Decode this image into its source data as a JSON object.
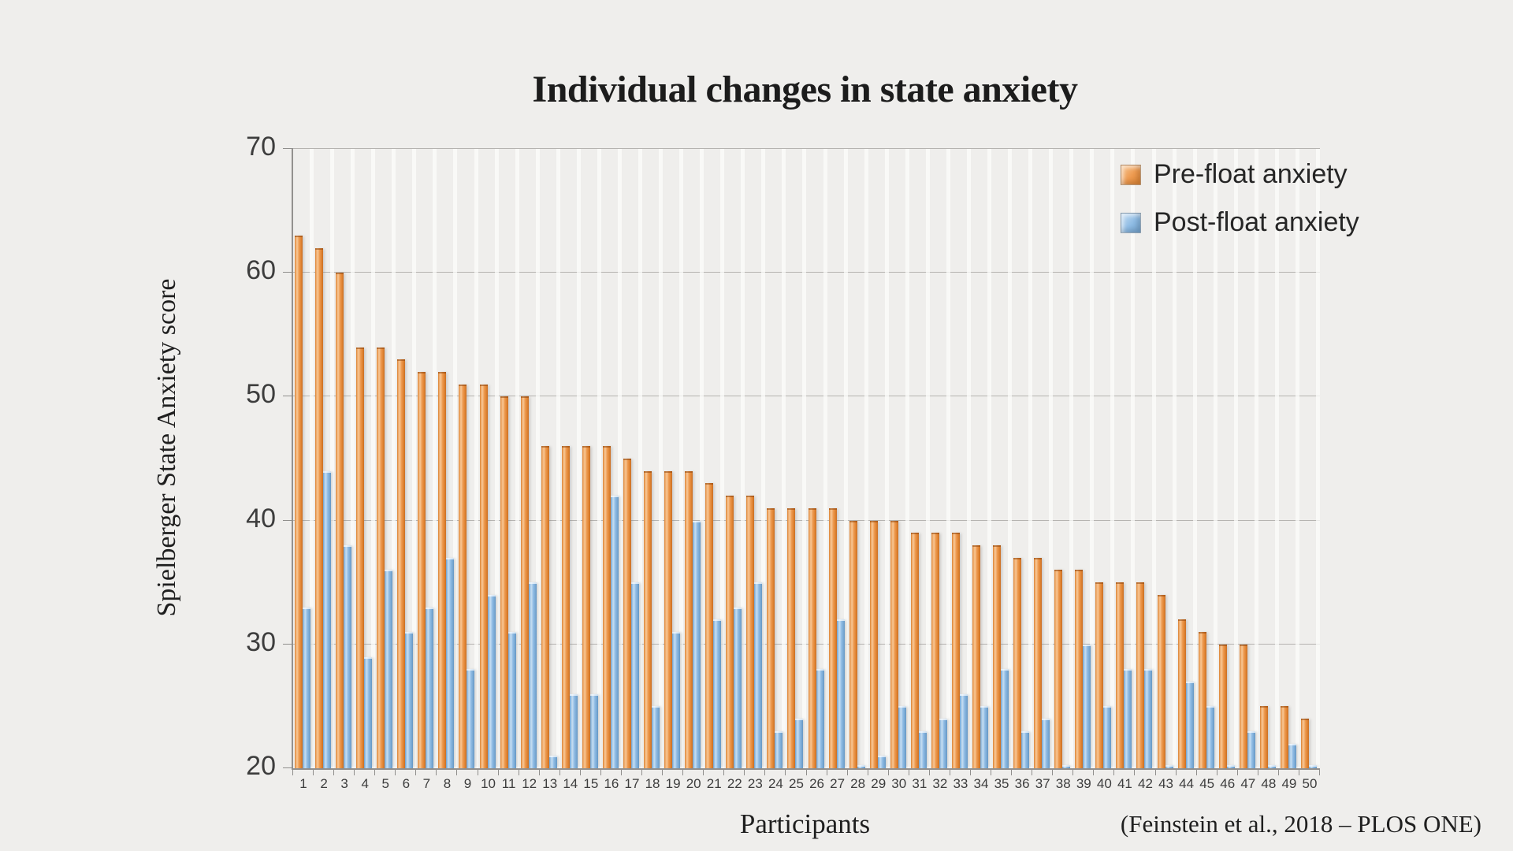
{
  "title": "Individual changes in state anxiety",
  "y_axis": {
    "title": "Spielberger State Anxiety score",
    "ticks": [
      70,
      60,
      50,
      40,
      30,
      20
    ],
    "min": 20,
    "max": 70
  },
  "x_axis": {
    "title": "Participants"
  },
  "legend": [
    {
      "label": "Pre-float anxiety",
      "color": "#ED9A50",
      "icon": "orange-square-swatch"
    },
    {
      "label": "Post-float anxiety",
      "color": "#8FBCE4",
      "icon": "blue-square-swatch"
    }
  ],
  "citation": "(Feinstein et al., 2018 – PLOS ONE)",
  "colors": {
    "background": "#EFEEEC",
    "pre_bar": "#ED9A50",
    "pre_bar_edge": "#C96F24",
    "post_bar": "#8FBCE4",
    "post_bar_edge": "#6596C4",
    "gridline": "#B5B3B0",
    "axis": "#93918F",
    "text": "#262626"
  },
  "chart_data": {
    "type": "bar",
    "title": "Individual changes in state anxiety",
    "xlabel": "Participants",
    "ylabel": "Spielberger State Anxiety score",
    "ylim": [
      20,
      70
    ],
    "yticks": [
      20,
      30,
      40,
      50,
      60,
      70
    ],
    "grid": true,
    "legend_position": "top-right",
    "categories": [
      1,
      2,
      3,
      4,
      5,
      6,
      7,
      8,
      9,
      10,
      11,
      12,
      13,
      14,
      15,
      16,
      17,
      18,
      19,
      20,
      21,
      22,
      23,
      24,
      25,
      26,
      27,
      28,
      29,
      30,
      31,
      32,
      33,
      34,
      35,
      36,
      37,
      38,
      39,
      40,
      41,
      42,
      43,
      44,
      45,
      46,
      47,
      48,
      49,
      50
    ],
    "series": [
      {
        "name": "Pre-float anxiety",
        "values": [
          63,
          62,
          60,
          54,
          54,
          53,
          52,
          52,
          51,
          51,
          50,
          50,
          46,
          46,
          46,
          46,
          45,
          44,
          44,
          44,
          43,
          42,
          42,
          41,
          41,
          41,
          41,
          40,
          40,
          40,
          39,
          39,
          39,
          38,
          38,
          37,
          37,
          36,
          36,
          35,
          35,
          35,
          34,
          32,
          31,
          30,
          30,
          25,
          25,
          24
        ]
      },
      {
        "name": "Post-float anxiety",
        "values": [
          33,
          44,
          38,
          29,
          36,
          31,
          33,
          37,
          28,
          34,
          31,
          35,
          21,
          26,
          26,
          42,
          35,
          25,
          31,
          40,
          32,
          33,
          35,
          23,
          24,
          28,
          32,
          20,
          21,
          25,
          23,
          24,
          26,
          25,
          28,
          23,
          24,
          20,
          30,
          25,
          28,
          28,
          20,
          27,
          25,
          20,
          23,
          20,
          22,
          20
        ]
      }
    ]
  }
}
